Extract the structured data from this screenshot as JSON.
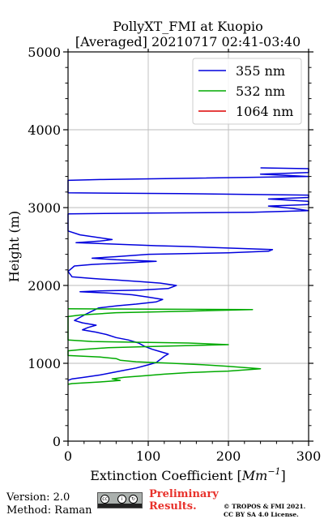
{
  "chart_data": {
    "type": "line",
    "title": "PollyXT_FMI at Kuopio",
    "subtitle": "[Averaged] 20210717 02:41-03:40",
    "xlabel": "Extinction Coefficient [Mm⁻¹]",
    "xlabel_text": "Extinction Coefficient [",
    "xlabel_unit": "Mm",
    "xlabel_exp": "−1",
    "xlabel_close": "]",
    "ylabel": "Height (m)",
    "xlim": [
      0,
      300
    ],
    "ylim": [
      0,
      5000
    ],
    "x_ticks": [
      0,
      100,
      200,
      300
    ],
    "x_tick_labels": [
      "0",
      "100",
      "200",
      "300"
    ],
    "y_ticks": [
      0,
      1000,
      2000,
      3000,
      4000,
      5000
    ],
    "y_tick_labels": [
      "0",
      "1000",
      "2000",
      "3000",
      "4000",
      "5000"
    ],
    "grid": true,
    "legend_position": "top-right",
    "series": [
      {
        "name": "355 nm",
        "color": "#0000dd",
        "points": [
          [
            0,
            780
          ],
          [
            5,
            800
          ],
          [
            20,
            820
          ],
          [
            40,
            850
          ],
          [
            55,
            880
          ],
          [
            70,
            910
          ],
          [
            85,
            940
          ],
          [
            100,
            980
          ],
          [
            110,
            1010
          ],
          [
            115,
            1050
          ],
          [
            120,
            1090
          ],
          [
            125,
            1120
          ],
          [
            115,
            1150
          ],
          [
            105,
            1180
          ],
          [
            95,
            1220
          ],
          [
            88,
            1260
          ],
          [
            75,
            1300
          ],
          [
            60,
            1330
          ],
          [
            48,
            1370
          ],
          [
            35,
            1400
          ],
          [
            18,
            1430
          ],
          [
            25,
            1460
          ],
          [
            35,
            1490
          ],
          [
            18,
            1520
          ],
          [
            8,
            1550
          ],
          [
            15,
            1590
          ],
          [
            22,
            1630
          ],
          [
            30,
            1670
          ],
          [
            38,
            1710
          ],
          [
            62,
            1740
          ],
          [
            85,
            1760
          ],
          [
            110,
            1790
          ],
          [
            118,
            1820
          ],
          [
            100,
            1850
          ],
          [
            80,
            1880
          ],
          [
            55,
            1900
          ],
          [
            15,
            1920
          ],
          [
            40,
            1930
          ],
          [
            90,
            1940
          ],
          [
            125,
            1960
          ],
          [
            135,
            2000
          ],
          [
            115,
            2030
          ],
          [
            90,
            2050
          ],
          [
            60,
            2070
          ],
          [
            30,
            2090
          ],
          [
            5,
            2110
          ],
          [
            0,
            2180
          ],
          [
            8,
            2250
          ],
          [
            30,
            2270
          ],
          [
            70,
            2290
          ],
          [
            110,
            2310
          ],
          [
            60,
            2330
          ],
          [
            30,
            2350
          ],
          [
            60,
            2370
          ],
          [
            100,
            2400
          ],
          [
            200,
            2420
          ],
          [
            250,
            2440
          ],
          [
            255,
            2460
          ],
          [
            200,
            2480
          ],
          [
            150,
            2500
          ],
          [
            110,
            2510
          ],
          [
            60,
            2530
          ],
          [
            10,
            2550
          ],
          [
            40,
            2570
          ],
          [
            55,
            2590
          ],
          [
            15,
            2650
          ],
          [
            0,
            2700
          ],
          [
            0,
            2920
          ],
          [
            100,
            2930
          ],
          [
            230,
            2940
          ],
          [
            300,
            2960
          ],
          [
            280,
            2990
          ],
          [
            250,
            3020
          ],
          [
            300,
            3040
          ],
          [
            300,
            3080
          ],
          [
            250,
            3110
          ],
          [
            300,
            3130
          ],
          [
            300,
            3160
          ],
          [
            140,
            3180
          ],
          [
            0,
            3190
          ],
          [
            0,
            3350
          ],
          [
            40,
            3360
          ],
          [
            300,
            3400
          ],
          [
            240,
            3430
          ],
          [
            300,
            3450
          ],
          [
            300,
            3500
          ],
          [
            240,
            3510
          ]
        ]
      },
      {
        "name": "532 nm",
        "color": "#00aa00",
        "points": [
          [
            0,
            730
          ],
          [
            5,
            740
          ],
          [
            40,
            760
          ],
          [
            65,
            780
          ],
          [
            55,
            800
          ],
          [
            70,
            820
          ],
          [
            95,
            840
          ],
          [
            120,
            860
          ],
          [
            150,
            880
          ],
          [
            200,
            900
          ],
          [
            240,
            930
          ],
          [
            200,
            960
          ],
          [
            170,
            980
          ],
          [
            130,
            1000
          ],
          [
            85,
            1020
          ],
          [
            65,
            1040
          ],
          [
            60,
            1060
          ],
          [
            40,
            1080
          ],
          [
            0,
            1100
          ],
          [
            0,
            1160
          ],
          [
            20,
            1180
          ],
          [
            50,
            1200
          ],
          [
            120,
            1220
          ],
          [
            200,
            1240
          ],
          [
            150,
            1260
          ],
          [
            30,
            1280
          ],
          [
            0,
            1300
          ],
          [
            0,
            1600
          ],
          [
            15,
            1620
          ],
          [
            60,
            1650
          ],
          [
            150,
            1670
          ],
          [
            230,
            1690
          ],
          [
            0,
            1700
          ]
        ]
      },
      {
        "name": "1064 nm",
        "color": "#dd0000",
        "points": []
      }
    ]
  },
  "footer": {
    "version": "Version: 2.0",
    "method": "Method: Raman",
    "preliminary_line1": "Preliminary",
    "preliminary_line2": "Results.",
    "copyright_line1": "© TROPOS & FMI 2021.",
    "copyright_line2": "CC BY SA 4.0 License.",
    "license_badge_icons": [
      "cc-icon",
      "by-icon",
      "sa-icon"
    ]
  }
}
